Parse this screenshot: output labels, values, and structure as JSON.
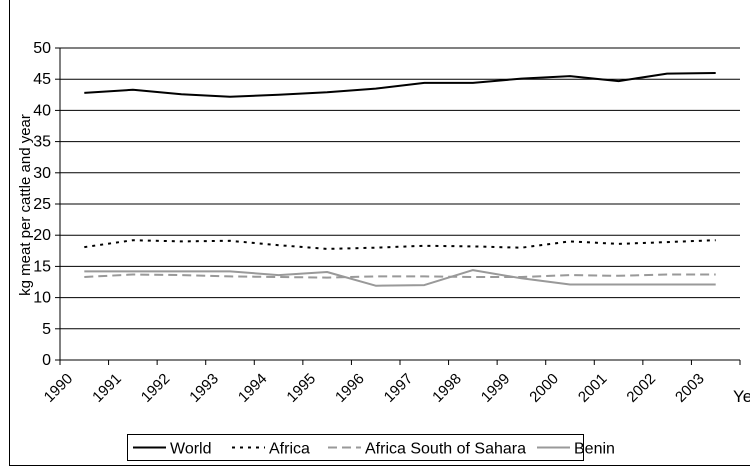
{
  "chart_data": {
    "type": "line",
    "ylabel": "kg meat per cattle and year",
    "xlabel": "Year",
    "x": [
      "1990",
      "1991",
      "1992",
      "1993",
      "1994",
      "1995",
      "1996",
      "1997",
      "1998",
      "1999",
      "2000",
      "2001",
      "2002",
      "2003"
    ],
    "ylim": [
      0,
      50
    ],
    "yticks": [
      0,
      5,
      10,
      15,
      20,
      25,
      30,
      35,
      40,
      45,
      50
    ],
    "grid": true,
    "legend_position": "bottom",
    "series": [
      {
        "name": "World",
        "style": "solid",
        "color": "#000000",
        "values": [
          42.8,
          43.3,
          42.6,
          42.2,
          42.5,
          42.9,
          43.5,
          44.4,
          44.4,
          45.1,
          45.5,
          44.7,
          45.9,
          46.0
        ]
      },
      {
        "name": "Africa",
        "style": "dotted",
        "color": "#000000",
        "values": [
          18.1,
          19.2,
          19.0,
          19.1,
          18.4,
          17.8,
          18.0,
          18.3,
          18.2,
          18.0,
          19.0,
          18.6,
          18.9,
          19.2
        ]
      },
      {
        "name": "Africa South of Sahara",
        "style": "dashed",
        "color": "#999999",
        "values": [
          13.3,
          13.7,
          13.6,
          13.4,
          13.3,
          13.2,
          13.4,
          13.4,
          13.3,
          13.3,
          13.6,
          13.5,
          13.7,
          13.7
        ]
      },
      {
        "name": "Benin",
        "style": "solid",
        "color": "#999999",
        "values": [
          14.2,
          14.2,
          14.2,
          14.2,
          13.6,
          14.1,
          11.9,
          12.0,
          14.4,
          13.1,
          12.1,
          12.1,
          12.1,
          12.1
        ]
      }
    ]
  }
}
